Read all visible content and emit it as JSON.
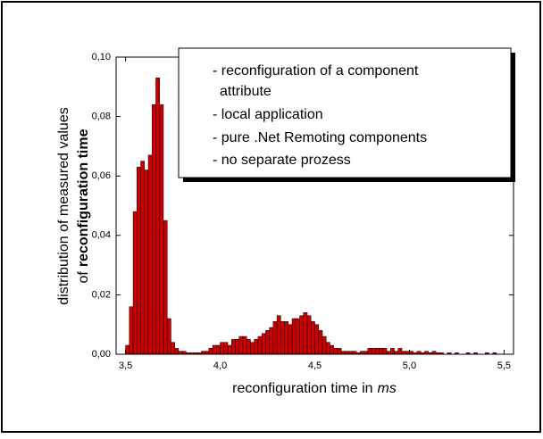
{
  "chart_data": {
    "type": "histogram",
    "ylabel_line1": "distribution of measured values",
    "ylabel_line2_prefix": "of",
    "ylabel_line2_bold": "reconfiguration time",
    "xlabel": "reconfiguration time in",
    "xlabel_unit": "ms",
    "annotation": [
      "- reconfiguration of a component",
      "attribute",
      "- local application",
      "- pure .Net Remoting components",
      "- no separate prozess"
    ],
    "color": "#cc0000",
    "xlim": [
      3.45,
      5.55
    ],
    "ylim": [
      0,
      0.1
    ],
    "xticks": [
      {
        "value": 3.5,
        "label": "3,5"
      },
      {
        "value": 4.0,
        "label": "4,0"
      },
      {
        "value": 4.5,
        "label": "4,5"
      },
      {
        "value": 5.0,
        "label": "5,0"
      },
      {
        "value": 5.5,
        "label": "5,5"
      }
    ],
    "yticks": [
      {
        "value": 0,
        "label": "0,00"
      },
      {
        "value": 0.02,
        "label": "0,02"
      },
      {
        "value": 0.04,
        "label": "0,04"
      },
      {
        "value": 0.06,
        "label": "0,06"
      },
      {
        "value": 0.08,
        "label": "0,08"
      },
      {
        "value": 0.1,
        "label": "0,10"
      }
    ],
    "bins": [
      3.5,
      3.52,
      3.54,
      3.56,
      3.58,
      3.6,
      3.62,
      3.64,
      3.66,
      3.68,
      3.7,
      3.72,
      3.74,
      3.76,
      3.78,
      3.8,
      3.82,
      3.84,
      3.86,
      3.88,
      3.9,
      3.92,
      3.94,
      3.96,
      3.98,
      4.0,
      4.02,
      4.04,
      4.06,
      4.08,
      4.1,
      4.12,
      4.14,
      4.16,
      4.18,
      4.2,
      4.22,
      4.24,
      4.26,
      4.28,
      4.3,
      4.32,
      4.34,
      4.36,
      4.38,
      4.4,
      4.42,
      4.44,
      4.46,
      4.48,
      4.5,
      4.52,
      4.54,
      4.56,
      4.58,
      4.6,
      4.62,
      4.64,
      4.66,
      4.68,
      4.7,
      4.72,
      4.74,
      4.76,
      4.78,
      4.8,
      4.82,
      4.84,
      4.86,
      4.88,
      4.9,
      4.92,
      4.94,
      4.96,
      4.98,
      5.0,
      5.02,
      5.04,
      5.06,
      5.08,
      5.1,
      5.12,
      5.14,
      5.16,
      5.18,
      5.2,
      5.22,
      5.24,
      5.26,
      5.28,
      5.3,
      5.32,
      5.34,
      5.36,
      5.38,
      5.4,
      5.42,
      5.44,
      5.46,
      5.48,
      5.5
    ],
    "values": [
      0.003,
      0.016,
      0.048,
      0.063,
      0.065,
      0.062,
      0.067,
      0.084,
      0.093,
      0.084,
      0.045,
      0.012,
      0.004,
      0.002,
      0.001,
      0.001,
      0.0005,
      0.0005,
      0.0005,
      0.0005,
      0.001,
      0.001,
      0.002,
      0.003,
      0.003,
      0.004,
      0.004,
      0.003,
      0.005,
      0.005,
      0.006,
      0.006,
      0.005,
      0.004,
      0.005,
      0.006,
      0.007,
      0.008,
      0.009,
      0.011,
      0.013,
      0.011,
      0.011,
      0.01,
      0.012,
      0.012,
      0.013,
      0.014,
      0.013,
      0.011,
      0.01,
      0.008,
      0.006,
      0.004,
      0.003,
      0.002,
      0.002,
      0.001,
      0.001,
      0.001,
      0.001,
      0.0005,
      0.001,
      0.001,
      0.002,
      0.002,
      0.002,
      0.002,
      0.002,
      0.001,
      0.002,
      0.001,
      0.002,
      0.001,
      0.001,
      0.001,
      0.0005,
      0.001,
      0.0005,
      0.001,
      0.0005,
      0.001,
      0.0005,
      0.0005,
      0,
      0.0005,
      0,
      0.0005,
      0,
      0,
      0.0005,
      0,
      0.0005,
      0,
      0,
      0.0005,
      0,
      0.0005,
      0,
      0
    ]
  }
}
